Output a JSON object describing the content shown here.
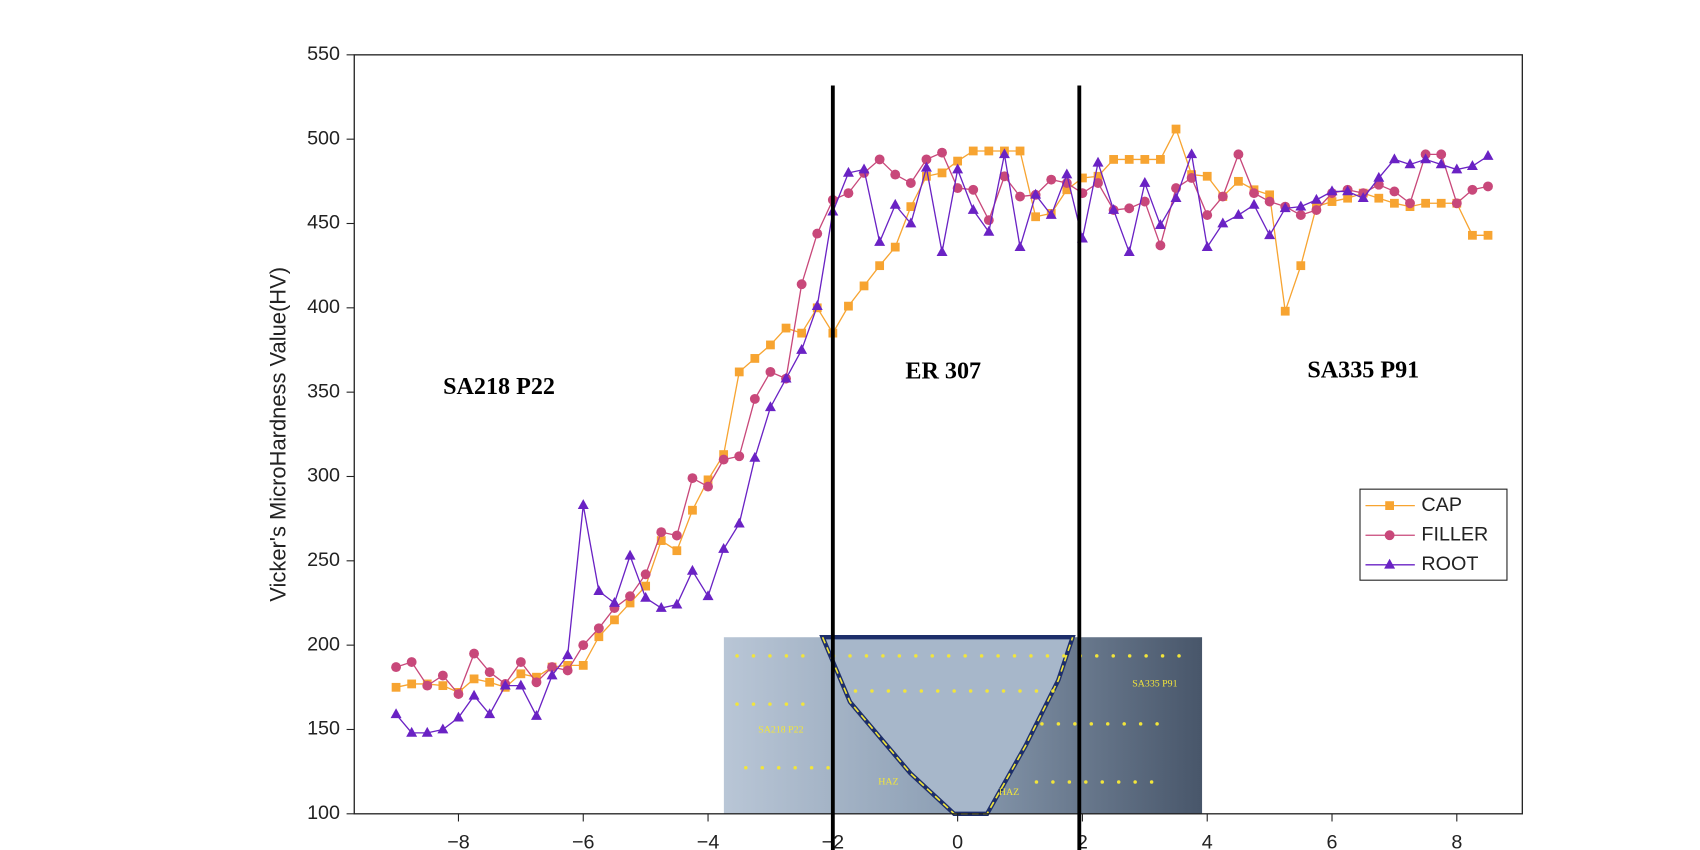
{
  "chart_data": {
    "type": "line",
    "y_label": "Vicker's MicroHardness Value(HV)",
    "annotations": [
      "SA218 P22",
      "ER 307",
      "SA335 P91"
    ],
    "vertical_lines": [
      -2,
      1.95
    ],
    "inset_labels": [
      "SA335 P91",
      "SA218 P22",
      "HAZ",
      "HAZ"
    ],
    "legend_position": "right",
    "xlim": [
      -9.67,
      9.05
    ],
    "ylim": [
      100,
      550
    ],
    "xticks": [
      {
        "value": -8,
        "label": "−8"
      },
      {
        "value": -6,
        "label": "−6"
      },
      {
        "value": -4,
        "label": "−4"
      },
      {
        "value": -2,
        "label": "−2"
      },
      0,
      2,
      4,
      6,
      8
    ],
    "yticks": [
      100,
      150,
      200,
      250,
      300,
      350,
      400,
      450,
      500,
      550
    ],
    "x": [
      -9,
      -8.75,
      -8.5,
      -8.25,
      -8,
      -7.75,
      -7.5,
      -7.25,
      -7,
      -6.75,
      -6.5,
      -6.25,
      -6,
      -5.75,
      -5.5,
      -5.25,
      -5,
      -4.75,
      -4.5,
      -4.25,
      -4,
      -3.75,
      -3.5,
      -3.25,
      -3,
      -2.75,
      -2.5,
      -2.25,
      -2,
      -1.75,
      -1.5,
      -1.25,
      -1,
      -0.75,
      -0.5,
      -0.25,
      0,
      0.25,
      0.5,
      0.75,
      1,
      1.25,
      1.5,
      1.75,
      2,
      2.25,
      2.5,
      2.75,
      3,
      3.25,
      3.5,
      3.75,
      4,
      4.25,
      4.5,
      4.75,
      5,
      5.25,
      5.5,
      5.75,
      6,
      6.25,
      6.5,
      6.75,
      7,
      7.25,
      7.5,
      7.75,
      8,
      8.25,
      8.5
    ],
    "series": [
      {
        "name": "CAP",
        "color": "#f7a431",
        "marker": "square",
        "values": [
          175,
          177,
          177,
          176,
          172,
          180,
          178,
          175,
          183,
          181,
          187,
          188,
          188,
          205,
          215,
          225,
          235,
          262,
          256,
          280,
          298,
          313,
          362,
          370,
          378,
          388,
          385,
          400,
          385,
          401,
          413,
          425,
          436,
          460,
          478,
          480,
          487,
          493,
          493,
          493,
          493,
          454,
          456,
          470,
          477,
          478,
          488,
          488,
          488,
          488,
          506,
          479,
          478,
          466,
          475,
          470,
          467,
          398,
          425,
          460,
          463,
          465,
          468,
          465,
          462,
          460,
          462,
          462,
          462,
          443,
          443
        ]
      },
      {
        "name": "FILLER",
        "color": "#c8487a",
        "marker": "circle",
        "values": [
          187,
          190,
          176,
          182,
          171,
          195,
          184,
          177,
          190,
          178,
          187,
          185,
          200,
          210,
          222,
          229,
          242,
          267,
          265,
          299,
          294,
          310,
          312,
          346,
          362,
          358,
          414,
          444,
          464,
          468,
          480,
          488,
          479,
          474,
          488,
          492,
          471,
          470,
          452,
          478,
          466,
          467,
          476,
          474,
          468,
          474,
          458,
          459,
          463,
          437,
          471,
          477,
          455,
          466,
          491,
          468,
          463,
          460,
          455,
          458,
          468,
          470,
          468,
          473,
          469,
          462,
          491,
          491,
          462,
          470,
          472
        ]
      },
      {
        "name": "ROOT",
        "color": "#6a22c4",
        "marker": "triangle",
        "values": [
          159,
          148,
          148,
          150,
          157,
          170,
          159,
          176,
          176,
          158,
          182,
          194,
          283,
          232,
          225,
          253,
          228,
          222,
          224,
          244,
          229,
          257,
          272,
          311,
          341,
          358,
          375,
          401,
          457,
          480,
          482,
          439,
          461,
          450,
          483,
          433,
          482,
          458,
          445,
          491,
          436,
          467,
          455,
          479,
          441,
          486,
          458,
          433,
          474,
          449,
          465,
          491,
          436,
          450,
          455,
          461,
          443,
          459,
          460,
          464,
          469,
          469,
          465,
          477,
          488,
          485,
          488,
          485,
          482,
          484,
          490
        ]
      }
    ]
  }
}
